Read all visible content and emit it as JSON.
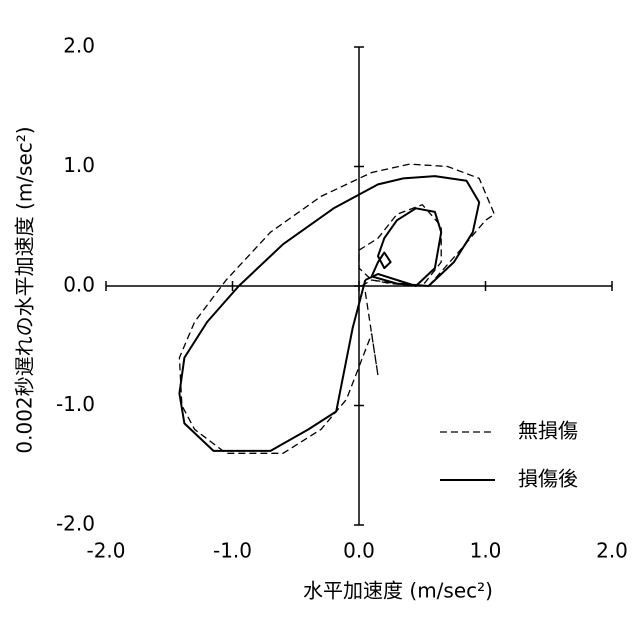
{
  "chart_data": {
    "type": "line",
    "xlabel": "水平加速度 (m/sec²)",
    "ylabel": "0.002秒遅れの水平加速度 (m/sec²)",
    "xlim": [
      -2,
      2
    ],
    "ylim": [
      -2,
      2
    ],
    "xticks": [
      {
        "value": -2,
        "label": "-2.0"
      },
      {
        "value": -1,
        "label": "-1.0"
      },
      {
        "value": 0,
        "label": "0.0"
      },
      {
        "value": 1,
        "label": "1.0"
      },
      {
        "value": 2,
        "label": "2.0"
      }
    ],
    "yticks": [
      {
        "value": -2,
        "label": "-2.0"
      },
      {
        "value": -1,
        "label": "-1.0"
      },
      {
        "value": 0,
        "label": "0.0"
      },
      {
        "value": 1,
        "label": "1.0"
      },
      {
        "value": 2,
        "label": "2.0"
      }
    ],
    "legend": "lower right",
    "series": [
      {
        "name": "無損傷",
        "color": "#000000",
        "line_style": "dashed",
        "x": [
          0.02,
          0.1,
          0.25,
          0.5,
          0.65,
          0.65,
          0.5,
          0.3,
          0.15,
          0.0,
          0.0,
          0.1,
          0.3,
          0.55,
          0.8,
          1.0,
          1.07,
          0.95,
          0.7,
          0.4,
          0.1,
          -0.3,
          -0.7,
          -1.05,
          -1.3,
          -1.42,
          -1.4,
          -1.3,
          -1.05,
          -0.6,
          -0.3,
          -0.1,
          0.1,
          0.15,
          0.05
        ],
        "values": [
          0.0,
          0.05,
          0.02,
          0.0,
          0.2,
          0.5,
          0.68,
          0.6,
          0.4,
          0.3,
          0.15,
          0.05,
          0.02,
          0.0,
          0.3,
          0.55,
          0.6,
          0.9,
          1.0,
          1.02,
          0.95,
          0.75,
          0.45,
          0.05,
          -0.3,
          -0.6,
          -1.0,
          -1.2,
          -1.4,
          -1.4,
          -1.2,
          -0.95,
          -0.4,
          -0.75,
          -0.05
        ]
      },
      {
        "name": "損傷後",
        "color": "#000000",
        "line_style": "solid",
        "x": [
          0.05,
          0.15,
          0.3,
          0.45,
          0.6,
          0.65,
          0.6,
          0.45,
          0.3,
          0.2,
          0.15,
          0.2,
          0.25,
          0.2,
          0.15,
          0.1,
          0.3,
          0.55,
          0.75,
          0.9,
          0.95,
          0.85,
          0.6,
          0.35,
          0.15,
          -0.2,
          -0.6,
          -0.95,
          -1.2,
          -1.38,
          -1.42,
          -1.38,
          -1.15,
          -0.7,
          -0.4,
          -0.18,
          -0.05,
          0.05
        ],
        "values": [
          0.05,
          0.1,
          0.05,
          0.0,
          0.15,
          0.45,
          0.62,
          0.65,
          0.55,
          0.4,
          0.25,
          0.15,
          0.2,
          0.28,
          0.2,
          0.08,
          0.02,
          0.0,
          0.2,
          0.45,
          0.7,
          0.88,
          0.92,
          0.9,
          0.85,
          0.65,
          0.35,
          0.0,
          -0.3,
          -0.6,
          -0.9,
          -1.15,
          -1.38,
          -1.38,
          -1.2,
          -1.05,
          -0.35,
          0.05
        ]
      }
    ]
  }
}
